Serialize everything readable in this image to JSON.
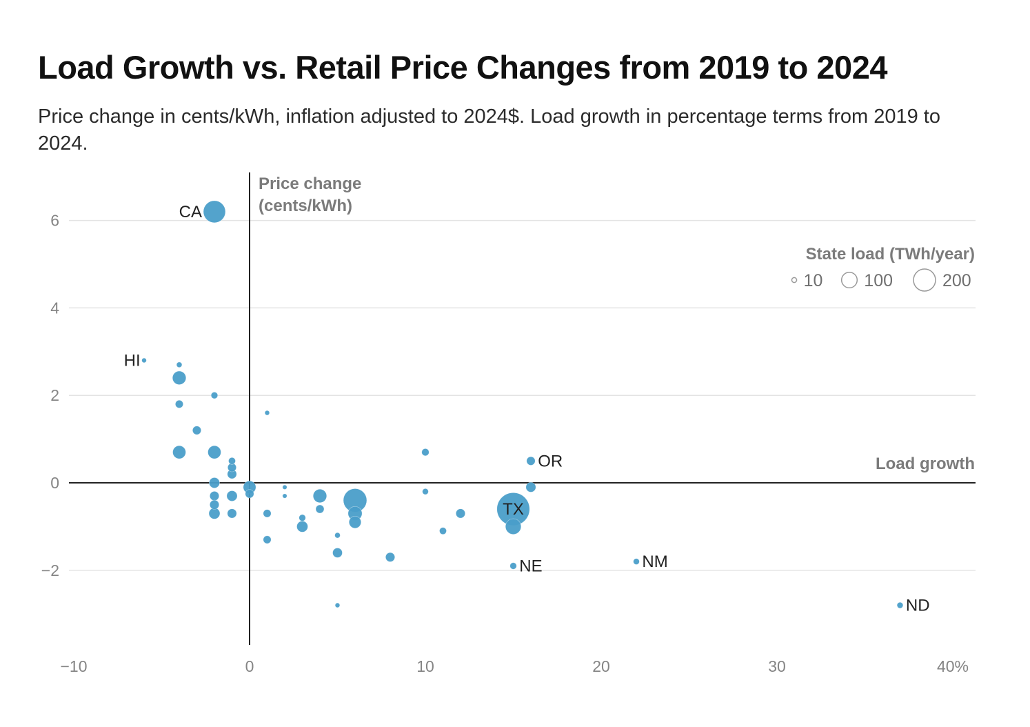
{
  "header": {
    "title": "Load Growth vs. Retail Price Changes from 2019 to 2024",
    "subtitle": "Price change in cents/kWh, inflation adjusted to 2024$. Load growth in percentage terms from 2019 to 2024."
  },
  "chart_data": {
    "type": "scatter",
    "title": "Load Growth vs. Retail Price Changes from 2019 to 2024",
    "subtitle": "Price change in cents/kWh, inflation adjusted to 2024$. Load growth in percentage terms from 2019 to 2024.",
    "xlabel": "Load growth",
    "ylabel_line1": "Price change",
    "ylabel_line2": "(cents/kWh)",
    "xlim": [
      -10,
      41
    ],
    "ylim": [
      -3.7,
      7.2
    ],
    "x_ticks": [
      -10,
      0,
      10,
      20,
      30,
      40
    ],
    "x_tick_labels": [
      "−10",
      "0",
      "10",
      "20",
      "30",
      "40%"
    ],
    "y_ticks": [
      -2,
      0,
      2,
      4,
      6
    ],
    "y_tick_labels": [
      "−2",
      "0",
      "2",
      "4",
      "6"
    ],
    "grid": "horizontal",
    "point_color": "#4a9ec9",
    "size_legend": {
      "title": "State load (TWh/year)",
      "position": "top-right",
      "values": [
        10,
        100,
        200
      ],
      "labels": [
        "10",
        "100",
        "200"
      ]
    },
    "points": [
      {
        "label": "CA",
        "x": -2,
        "y": 6.2,
        "load": 200
      },
      {
        "label": "HI",
        "x": -6,
        "y": 2.8,
        "load": 9
      },
      {
        "label": "",
        "x": -4,
        "y": 2.7,
        "load": 12
      },
      {
        "label": "",
        "x": -4,
        "y": 2.4,
        "load": 75
      },
      {
        "label": "",
        "x": -2,
        "y": 2.0,
        "load": 18
      },
      {
        "label": "",
        "x": -4,
        "y": 1.8,
        "load": 25
      },
      {
        "label": "",
        "x": 1,
        "y": 1.6,
        "load": 9
      },
      {
        "label": "",
        "x": -3,
        "y": 1.2,
        "load": 30
      },
      {
        "label": "",
        "x": -4,
        "y": 0.7,
        "load": 70
      },
      {
        "label": "",
        "x": -2,
        "y": 0.7,
        "load": 70
      },
      {
        "label": "",
        "x": -1,
        "y": 0.5,
        "load": 20
      },
      {
        "label": "",
        "x": -1,
        "y": 0.35,
        "load": 30
      },
      {
        "label": "",
        "x": -1,
        "y": 0.2,
        "load": 35
      },
      {
        "label": "",
        "x": -2,
        "y": 0.0,
        "load": 45
      },
      {
        "label": "",
        "x": 0,
        "y": -0.1,
        "load": 65
      },
      {
        "label": "",
        "x": 0,
        "y": -0.25,
        "load": 30
      },
      {
        "label": "",
        "x": -2,
        "y": -0.3,
        "load": 35
      },
      {
        "label": "",
        "x": -2,
        "y": -0.5,
        "load": 35
      },
      {
        "label": "",
        "x": -2,
        "y": -0.7,
        "load": 50
      },
      {
        "label": "",
        "x": -1,
        "y": -0.3,
        "load": 45
      },
      {
        "label": "",
        "x": -1,
        "y": -0.7,
        "load": 35
      },
      {
        "label": "",
        "x": 2,
        "y": -0.1,
        "load": 8
      },
      {
        "label": "",
        "x": 2,
        "y": -0.3,
        "load": 8
      },
      {
        "label": "",
        "x": 1,
        "y": -0.7,
        "load": 25
      },
      {
        "label": "",
        "x": 1,
        "y": -1.3,
        "load": 25
      },
      {
        "label": "",
        "x": 3,
        "y": -0.8,
        "load": 18
      },
      {
        "label": "",
        "x": 3,
        "y": -1.0,
        "load": 50
      },
      {
        "label": "",
        "x": 4,
        "y": -0.3,
        "load": 75
      },
      {
        "label": "",
        "x": 4,
        "y": -0.6,
        "load": 28
      },
      {
        "label": "",
        "x": 5,
        "y": -1.2,
        "load": 12
      },
      {
        "label": "",
        "x": 5,
        "y": -1.6,
        "load": 38
      },
      {
        "label": "",
        "x": 5,
        "y": -2.8,
        "load": 9
      },
      {
        "label": "",
        "x": 6,
        "y": -0.4,
        "load": 225
      },
      {
        "label": "",
        "x": 6,
        "y": -0.7,
        "load": 80
      },
      {
        "label": "",
        "x": 6,
        "y": -0.9,
        "load": 60
      },
      {
        "label": "",
        "x": 8,
        "y": -1.7,
        "load": 35
      },
      {
        "label": "",
        "x": 10,
        "y": 0.7,
        "load": 22
      },
      {
        "label": "",
        "x": 10,
        "y": -0.2,
        "load": 15
      },
      {
        "label": "",
        "x": 11,
        "y": -1.1,
        "load": 20
      },
      {
        "label": "",
        "x": 12,
        "y": -0.7,
        "load": 35
      },
      {
        "label": "OR",
        "x": 16,
        "y": 0.5,
        "load": 30
      },
      {
        "label": "",
        "x": 16,
        "y": -0.1,
        "load": 40
      },
      {
        "label": "TX",
        "x": 15,
        "y": -0.6,
        "load": 440
      },
      {
        "label": "",
        "x": 15,
        "y": -1.0,
        "load": 100
      },
      {
        "label": "NE",
        "x": 15,
        "y": -1.9,
        "load": 18
      },
      {
        "label": "NM",
        "x": 22,
        "y": -1.8,
        "load": 15
      },
      {
        "label": "ND",
        "x": 37,
        "y": -2.8,
        "load": 15
      }
    ]
  }
}
